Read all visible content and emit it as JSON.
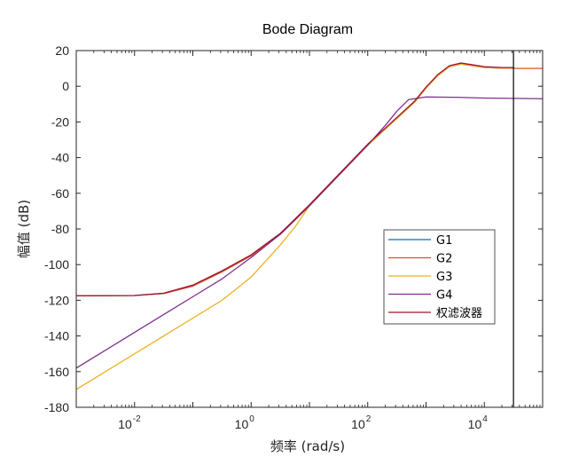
{
  "chart_data": {
    "type": "line",
    "title": "Bode Diagram",
    "xlabel": "频率  (rad/s)",
    "ylabel": "幅值 (dB)",
    "xscale": "log",
    "xlim_log10": [
      -3,
      5
    ],
    "ylim": [
      -180,
      20
    ],
    "yticks": [
      20,
      0,
      -20,
      -40,
      -60,
      -80,
      -100,
      -120,
      -140,
      -160,
      -180
    ],
    "xticks": [
      {
        "exp": -2,
        "base": "10",
        "sup": "-2"
      },
      {
        "exp": 0,
        "base": "10",
        "sup": "0"
      },
      {
        "exp": 2,
        "base": "10",
        "sup": "2"
      },
      {
        "exp": 4,
        "base": "10",
        "sup": "4"
      }
    ],
    "vline_log10_w": 4.5,
    "legend_position": "center-right",
    "series": [
      {
        "name": "G1",
        "color": "#0072BD",
        "log10_w": [
          -3,
          -2,
          -1.5,
          -1,
          -0.5,
          0,
          0.5,
          1,
          1.5,
          2,
          2.3,
          2.6,
          2.8,
          3,
          3.2,
          3.4,
          3.6,
          3.8,
          4,
          4.3,
          4.5
        ],
        "mag_db": [
          -117.5,
          -117.3,
          -116.2,
          -112,
          -104,
          -95,
          -83,
          -67,
          -50,
          -33,
          -24,
          -15,
          -9,
          -1,
          6,
          11,
          12.5,
          11.5,
          10.5,
          10.2,
          10.2
        ]
      },
      {
        "name": "G2",
        "color": "#D95319",
        "log10_w": [
          -3,
          -2,
          -1.5,
          -1,
          -0.5,
          0,
          0.5,
          1,
          1.5,
          2,
          2.3,
          2.6,
          2.8,
          3,
          3.2,
          3.4,
          3.6,
          3.8,
          4,
          4.3,
          4.6,
          5
        ],
        "mag_db": [
          -117.5,
          -117.3,
          -116.2,
          -112,
          -104,
          -95,
          -83,
          -67,
          -50,
          -33,
          -24,
          -15,
          -9,
          -1,
          6,
          11,
          12.5,
          11.5,
          10.5,
          10.2,
          10,
          10
        ]
      },
      {
        "name": "G3",
        "color": "#EDB120",
        "log10_w": [
          -3,
          -2.5,
          -2,
          -1.5,
          -1,
          -0.5,
          0,
          0.25,
          0.5,
          0.75,
          1,
          1.5,
          2,
          2.3,
          2.6,
          2.8,
          3,
          3.2,
          3.4,
          3.6,
          3.8,
          4,
          4.3,
          4.5
        ],
        "mag_db": [
          -170,
          -160,
          -150,
          -140,
          -130,
          -120,
          -107,
          -98,
          -89,
          -79,
          -67,
          -50,
          -33,
          -24,
          -15,
          -9,
          -1,
          6,
          11,
          12.5,
          11.5,
          10.5,
          10.2,
          10.2
        ]
      },
      {
        "name": "G4",
        "color": "#7E2F8E",
        "log10_w": [
          -3,
          -2.5,
          -2,
          -1.5,
          -1,
          -0.5,
          0,
          0.5,
          1,
          1.5,
          2,
          2.3,
          2.5,
          2.7,
          3,
          3.5,
          4,
          4.5,
          5
        ],
        "mag_db": [
          -158,
          -148,
          -138,
          -128,
          -118,
          -108,
          -96,
          -83,
          -67,
          -50,
          -33,
          -22,
          -14,
          -7.5,
          -6,
          -6.2,
          -6.6,
          -6.8,
          -7
        ]
      },
      {
        "name": "权滤波器",
        "color": "#A2142F",
        "log10_w": [
          -3,
          -2,
          -1.5,
          -1,
          -0.5,
          0,
          0.5,
          1,
          1.5,
          2,
          2.3,
          2.6,
          2.8,
          3,
          3.2,
          3.4,
          3.6,
          3.8,
          4,
          4.3,
          4.5
        ],
        "mag_db": [
          -117.5,
          -117.3,
          -116,
          -111.5,
          -103.5,
          -94.5,
          -82.5,
          -66.5,
          -49.5,
          -32.5,
          -23.5,
          -14.5,
          -8.5,
          -0.5,
          6.5,
          11.5,
          13,
          12,
          11,
          10.5,
          10.5
        ]
      }
    ]
  }
}
